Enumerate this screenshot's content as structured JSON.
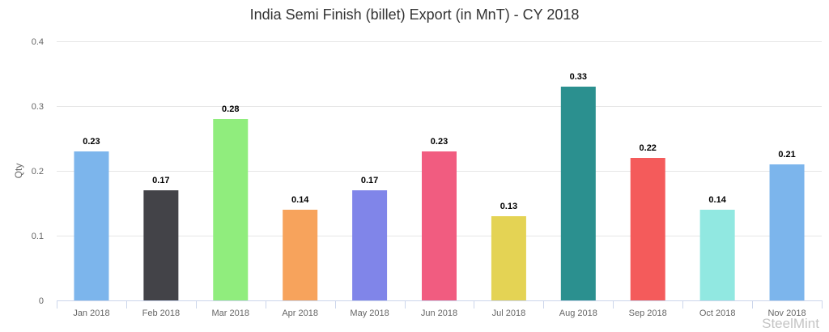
{
  "chart_data": {
    "type": "bar",
    "title": "India Semi Finish (billet) Export (in MnT) - CY 2018",
    "xlabel": "",
    "ylabel": "Qty",
    "categories": [
      "Jan 2018",
      "Feb 2018",
      "Mar 2018",
      "Apr 2018",
      "May 2018",
      "Jun 2018",
      "Jul 2018",
      "Aug 2018",
      "Sep 2018",
      "Oct 2018",
      "Nov 2018"
    ],
    "values": [
      0.23,
      0.17,
      0.28,
      0.14,
      0.17,
      0.23,
      0.13,
      0.33,
      0.22,
      0.14,
      0.21
    ],
    "value_labels": [
      "0.23",
      "0.17",
      "0.28",
      "0.14",
      "0.17",
      "0.23",
      "0.13",
      "0.33",
      "0.22",
      "0.14",
      "0.21"
    ],
    "colors": [
      "#7cb5ec",
      "#434348",
      "#90ed7d",
      "#f7a35c",
      "#8085e9",
      "#f15c80",
      "#e4d354",
      "#2b908f",
      "#f45b5b",
      "#91e8e1",
      "#7cb5ec"
    ],
    "ylim": [
      0,
      0.4
    ],
    "yticks": [
      0,
      0.1,
      0.2,
      0.3,
      0.4
    ],
    "ytick_labels": [
      "0",
      "0.1",
      "0.2",
      "0.3",
      "0.4"
    ],
    "grid": true,
    "legend": "none"
  },
  "watermark": "SteelMint"
}
